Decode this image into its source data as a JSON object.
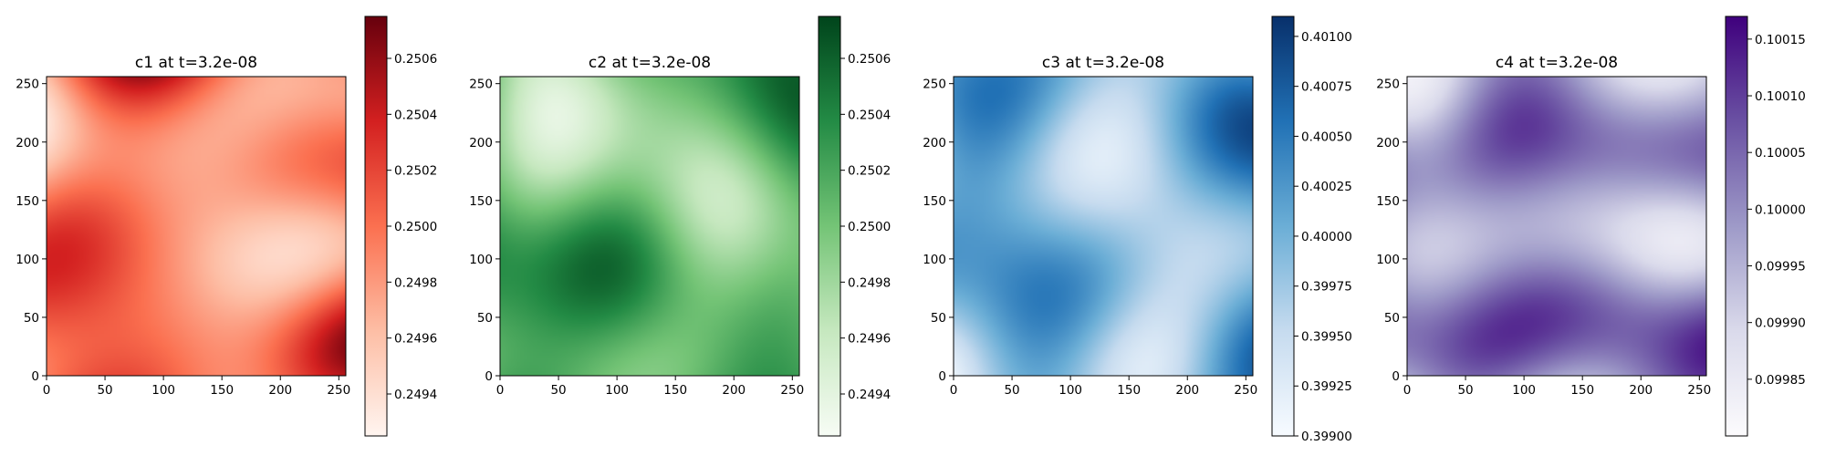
{
  "chart_data": [
    {
      "type": "heatmap",
      "title": "c1 at t=3.2e-08",
      "colormap": "Reds",
      "colors": [
        "#fff5f0",
        "#fdbea5",
        "#fb7050",
        "#d32020",
        "#67000d"
      ],
      "xlim": [
        0,
        256
      ],
      "ylim": [
        0,
        256
      ],
      "xticks": [
        "0",
        "50",
        "100",
        "150",
        "200",
        "250"
      ],
      "yticks": [
        "0",
        "50",
        "100",
        "150",
        "200",
        "250"
      ],
      "colorbar": {
        "range": [
          0.24925,
          0.25075
        ],
        "ticks": [
          0.2494,
          0.2496,
          0.2498,
          0.25,
          0.2502,
          0.2504,
          0.2506
        ],
        "tick_labels": [
          "0.2494",
          "0.2496",
          "0.2498",
          "0.2500",
          "0.2502",
          "0.2504",
          "0.2506"
        ]
      },
      "seed": 11
    },
    {
      "type": "heatmap",
      "title": "c2 at t=3.2e-08",
      "colormap": "Greens",
      "colors": [
        "#f7fcf5",
        "#c6e8bf",
        "#74c476",
        "#238b45",
        "#00441b"
      ],
      "xlim": [
        0,
        256
      ],
      "ylim": [
        0,
        256
      ],
      "xticks": [
        "0",
        "50",
        "100",
        "150",
        "200",
        "250"
      ],
      "yticks": [
        "0",
        "50",
        "100",
        "150",
        "200",
        "250"
      ],
      "colorbar": {
        "range": [
          0.24925,
          0.25075
        ],
        "ticks": [
          0.2494,
          0.2496,
          0.2498,
          0.25,
          0.2502,
          0.2504,
          0.2506
        ],
        "tick_labels": [
          "0.2494",
          "0.2496",
          "0.2498",
          "0.2500",
          "0.2502",
          "0.2504",
          "0.2506"
        ]
      },
      "seed": 23
    },
    {
      "type": "heatmap",
      "title": "c3 at t=3.2e-08",
      "colormap": "Blues",
      "colors": [
        "#f7fbff",
        "#c6dbef",
        "#6baed6",
        "#2171b5",
        "#08306b"
      ],
      "xlim": [
        0,
        256
      ],
      "ylim": [
        0,
        256
      ],
      "xticks": [
        "0",
        "50",
        "100",
        "150",
        "200",
        "250"
      ],
      "yticks": [
        "0",
        "50",
        "100",
        "150",
        "200",
        "250"
      ],
      "colorbar": {
        "range": [
          0.399,
          0.4011
        ],
        "ticks": [
          0.399,
          0.39925,
          0.3995,
          0.39975,
          0.4,
          0.40025,
          0.4005,
          0.40075,
          0.401
        ],
        "tick_labels": [
          "0.39900",
          "0.39925",
          "0.39950",
          "0.39975",
          "0.40000",
          "0.40025",
          "0.40050",
          "0.40075",
          "0.40100"
        ]
      },
      "seed": 37
    },
    {
      "type": "heatmap",
      "title": "c4 at t=3.2e-08",
      "colormap": "Purples",
      "colors": [
        "#fcfbfd",
        "#dadaeb",
        "#9e9ac8",
        "#6a51a3",
        "#3f007d"
      ],
      "xlim": [
        0,
        256
      ],
      "ylim": [
        0,
        256
      ],
      "xticks": [
        "0",
        "50",
        "100",
        "150",
        "200",
        "250"
      ],
      "yticks": [
        "0",
        "50",
        "100",
        "150",
        "200",
        "250"
      ],
      "colorbar": {
        "range": [
          0.0998,
          0.10017
        ],
        "ticks": [
          0.09985,
          0.0999,
          0.09995,
          0.1,
          0.10005,
          0.1001,
          0.10015
        ],
        "tick_labels": [
          "0.09985",
          "0.09990",
          "0.09995",
          "0.10000",
          "0.10005",
          "0.10010",
          "0.10015"
        ]
      },
      "seed": 51
    }
  ]
}
